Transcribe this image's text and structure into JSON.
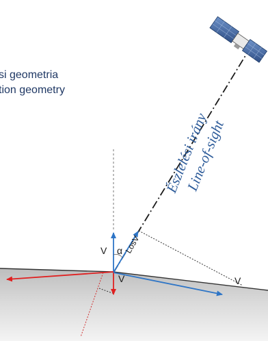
{
  "title": {
    "line1": "si geometria",
    "line2": "tion geometry"
  },
  "los": {
    "label_hu": "Észlelési irány",
    "label_en": "Line-of-sight"
  },
  "symbols": {
    "vertical_v": "V",
    "alpha": "α",
    "losv": "LosV",
    "downward_v": "V",
    "slope_v": "V"
  },
  "colors": {
    "los_line": "#1a1a1a",
    "blue_arrow": "#2e75c6",
    "red_arrow": "#e02020",
    "ground_fill": "#cfcfcf",
    "text_blue": "#2e5c9a"
  },
  "icons": {
    "satellite": "satellite-icon"
  }
}
